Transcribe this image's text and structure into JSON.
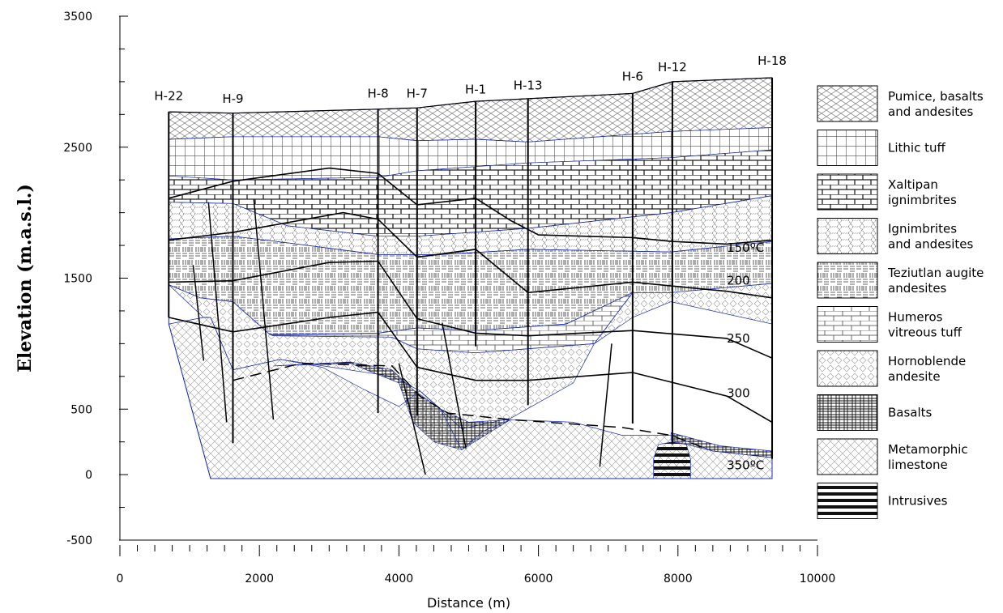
{
  "chart_data": {
    "type": "geological-cross-section",
    "xlabel": "Distance (m)",
    "ylabel": "Elevation (m.a.s.l.)",
    "xlim": [
      0,
      10000
    ],
    "ylim": [
      -500,
      3500
    ],
    "x_ticks": [
      "0",
      "2000",
      "4000",
      "6000",
      "8000",
      "10000"
    ],
    "y_ticks": [
      "-500",
      "0",
      "500",
      "1500",
      "2500",
      "3500"
    ],
    "wells": [
      {
        "name": "H-22",
        "x": 700
      },
      {
        "name": "H-9",
        "x": 1620
      },
      {
        "name": "H-8",
        "x": 3700
      },
      {
        "name": "H-7",
        "x": 4260
      },
      {
        "name": "H-1",
        "x": 5100
      },
      {
        "name": "H-13",
        "x": 5850
      },
      {
        "name": "H-6",
        "x": 7350
      },
      {
        "name": "H-12",
        "x": 7920
      },
      {
        "name": "H-18",
        "x": 9350
      }
    ],
    "isotherms": [
      {
        "label": "150ºC",
        "x": 8700,
        "y": 1700
      },
      {
        "label": "200",
        "x": 8700,
        "y": 1450
      },
      {
        "label": "250",
        "x": 8700,
        "y": 1010
      },
      {
        "label": "300",
        "x": 8700,
        "y": 590
      },
      {
        "label": "350ºC",
        "x": 8700,
        "y": 40
      }
    ],
    "legend": [
      {
        "label": "Pumice, basalts and andesites",
        "pattern": "cross",
        "lines": [
          "Pumice, basalts",
          "and andesites"
        ]
      },
      {
        "label": "Lithic tuff",
        "pattern": "grid",
        "lines": [
          "Lithic tuff"
        ]
      },
      {
        "label": "Xaltipan ignimbrites",
        "pattern": "brick-bold",
        "lines": [
          "Xaltipan",
          "ignimbrites"
        ]
      },
      {
        "label": "Ignimbrites and andesites",
        "pattern": "hex",
        "lines": [
          "Ignimbrites",
          "and andesites"
        ]
      },
      {
        "label": "Teziutlan augite andesites",
        "pattern": "weave",
        "lines": [
          "Teziutlan augite",
          "andesites"
        ]
      },
      {
        "label": "Humeros vitreous tuff",
        "pattern": "brick",
        "lines": [
          "Humeros",
          "vitreous tuff"
        ]
      },
      {
        "label": "Hornoblende andesite",
        "pattern": "diamond",
        "lines": [
          "Hornoblende",
          "andesite"
        ]
      },
      {
        "label": "Basalts",
        "pattern": "basalt",
        "lines": [
          "Basalts"
        ]
      },
      {
        "label": "Metamorphic limestone",
        "pattern": "xhatch",
        "lines": [
          "Metamorphic",
          "limestone"
        ]
      },
      {
        "label": "Intrusives",
        "pattern": "hlines",
        "lines": [
          "Intrusives"
        ]
      }
    ]
  }
}
